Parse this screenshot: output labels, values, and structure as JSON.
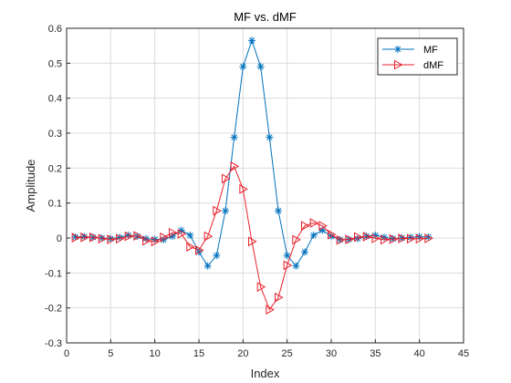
{
  "chart_data": {
    "type": "line",
    "title": "MF vs. dMF",
    "xlabel": "Index",
    "ylabel": "Amplitude",
    "xlim": [
      0,
      45
    ],
    "ylim": [
      -0.3,
      0.6
    ],
    "xticks": [
      0,
      5,
      10,
      15,
      20,
      25,
      30,
      35,
      40,
      45
    ],
    "yticks": [
      -0.3,
      -0.2,
      -0.1,
      0,
      0.1,
      0.2,
      0.3,
      0.4,
      0.5,
      0.6
    ],
    "grid": true,
    "legend_position": "top-right",
    "x": [
      1,
      2,
      3,
      4,
      5,
      6,
      7,
      8,
      9,
      10,
      11,
      12,
      13,
      14,
      15,
      16,
      17,
      18,
      19,
      20,
      21,
      22,
      23,
      24,
      25,
      26,
      27,
      28,
      29,
      30,
      31,
      32,
      33,
      34,
      35,
      36,
      37,
      38,
      39,
      40,
      41
    ],
    "series": [
      {
        "name": "MF",
        "color": "#0072BD",
        "marker": "asterisk",
        "values": [
          0.003,
          0.004,
          0.002,
          0.0,
          -0.002,
          0.002,
          0.008,
          0.005,
          -0.002,
          -0.004,
          -0.005,
          0.005,
          0.022,
          0.008,
          -0.04,
          -0.08,
          -0.05,
          0.078,
          0.288,
          0.49,
          0.565,
          0.49,
          0.288,
          0.078,
          -0.05,
          -0.08,
          -0.04,
          0.008,
          0.022,
          0.005,
          -0.005,
          -0.004,
          -0.002,
          0.005,
          0.008,
          0.002,
          -0.002,
          0.0,
          0.002,
          0.004,
          0.003
        ]
      },
      {
        "name": "dMF",
        "color": "#E8202A",
        "marker": "triangle-right",
        "values": [
          0.001,
          0.002,
          0.002,
          -0.002,
          -0.004,
          -0.002,
          0.005,
          0.006,
          -0.008,
          -0.01,
          0.002,
          0.015,
          0.012,
          -0.025,
          -0.035,
          0.005,
          0.078,
          0.17,
          0.205,
          0.14,
          -0.01,
          -0.14,
          -0.205,
          -0.17,
          -0.078,
          -0.005,
          0.035,
          0.043,
          0.035,
          0.01,
          -0.006,
          -0.004,
          0.003,
          0.004,
          -0.001,
          -0.005,
          -0.003,
          -0.001,
          -0.002,
          -0.002,
          -0.001
        ]
      }
    ]
  }
}
